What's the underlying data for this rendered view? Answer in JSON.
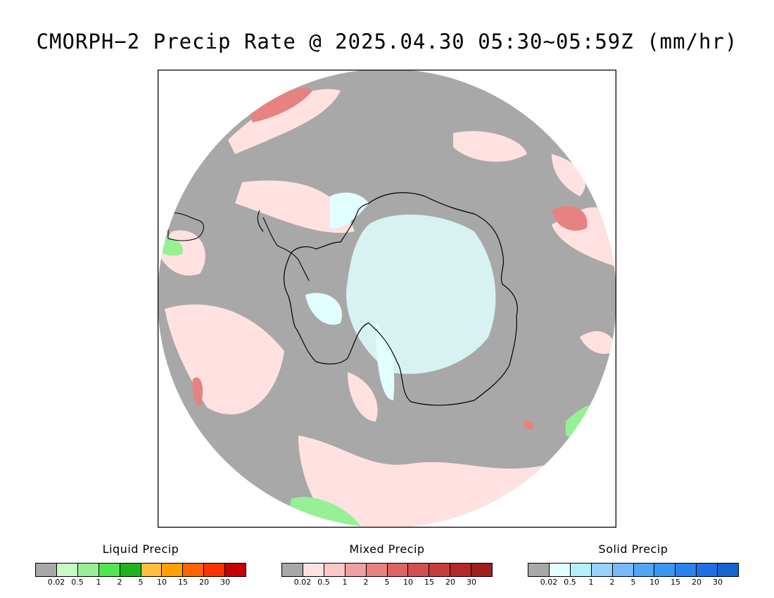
{
  "title": "CMORPH−2 Precip Rate @ 2025.04.30 05:30~05:59Z (mm/hr)",
  "map": {
    "projection": "south-polar-stereographic",
    "background_color": "#a8a8a8",
    "coastline_color": "#000000"
  },
  "legends": [
    {
      "id": "liquid",
      "title": "Liquid Precip",
      "colors": [
        "#a8a8a8",
        "#c8fac8",
        "#96f096",
        "#50e650",
        "#1eb41e",
        "#ffbe3c",
        "#ffa000",
        "#ff6400",
        "#ff3200",
        "#c80000"
      ],
      "ticks": [
        "0.02",
        "0.5",
        "1",
        "2",
        "5",
        "10",
        "15",
        "20",
        "30"
      ]
    },
    {
      "id": "mixed",
      "title": "Mixed Precip",
      "colors": [
        "#a8a8a8",
        "#ffe1e1",
        "#fac8c8",
        "#f0a0a0",
        "#e68282",
        "#dc6464",
        "#d25050",
        "#c83c3c",
        "#b42828",
        "#a01e1e"
      ],
      "ticks": [
        "0.02",
        "0.5",
        "1",
        "2",
        "5",
        "10",
        "15",
        "20",
        "30"
      ]
    },
    {
      "id": "solid",
      "title": "Solid Precip",
      "colors": [
        "#a8a8a8",
        "#e1ffff",
        "#b4f0fa",
        "#96d2fa",
        "#78b9fa",
        "#50a5f5",
        "#3c96f5",
        "#2882f0",
        "#1e6ee6",
        "#1464d2"
      ],
      "ticks": [
        "0.02",
        "0.5",
        "1",
        "2",
        "5",
        "10",
        "15",
        "20",
        "30"
      ]
    }
  ]
}
